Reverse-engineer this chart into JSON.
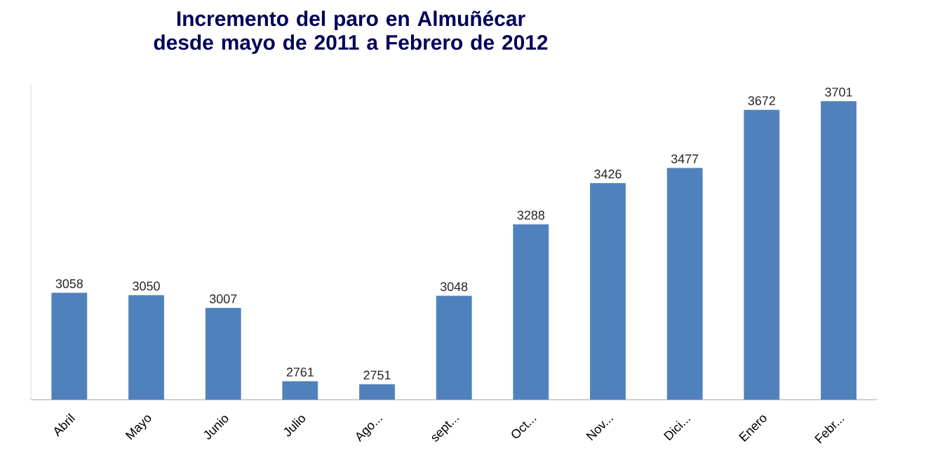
{
  "chart_data": {
    "type": "bar",
    "title": "Incremento del paro en Almuñécar desde mayo de 2011 a Febrero de 2012",
    "categories": [
      "Abril",
      "Mayo",
      "Junio",
      "Julio",
      "Ago...",
      "sept...",
      "Oct...",
      "Nov...",
      "Dici...",
      "Enero",
      "Febr..."
    ],
    "values": [
      3058,
      3050,
      3007,
      2761,
      2751,
      3048,
      3288,
      3426,
      3477,
      3672,
      3701
    ],
    "color": "#4f81bd",
    "ylim": [
      2700,
      3760
    ],
    "data_labels": true
  }
}
